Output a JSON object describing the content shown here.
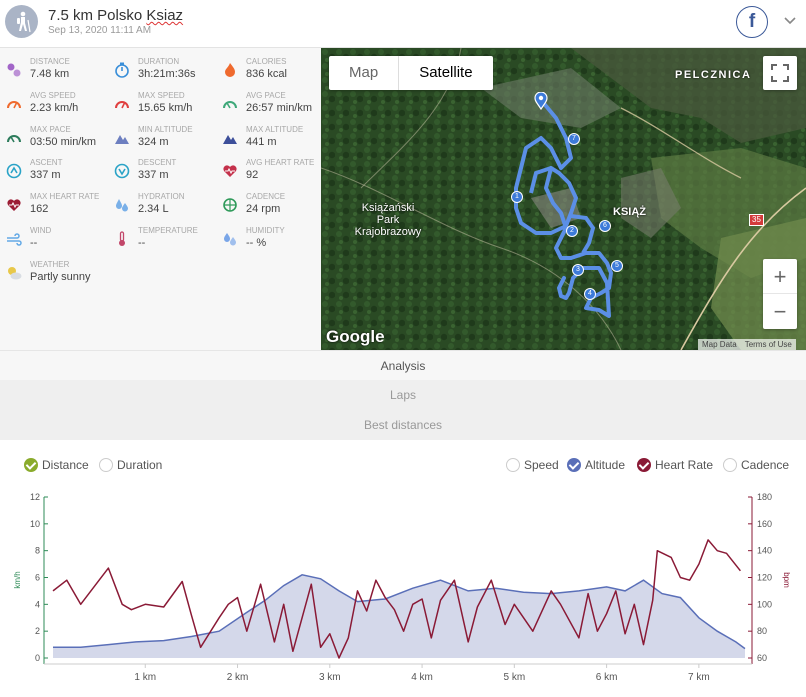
{
  "header": {
    "title_main": "7.5 km Polsko ",
    "title_misspelled": "Ksiaz",
    "subtitle": "Sep 13, 2020 11:11 AM"
  },
  "share": {
    "facebook_label": "f"
  },
  "stats": [
    {
      "label": "DISTANCE",
      "value": "7.48 km",
      "icon": "distance-icon",
      "color": "#a265c8"
    },
    {
      "label": "DURATION",
      "value": "3h:21m:36s",
      "icon": "stopwatch-icon",
      "color": "#3a8fd9"
    },
    {
      "label": "CALORIES",
      "value": "836 kcal",
      "icon": "flame-icon",
      "color": "#ef6a2e"
    },
    {
      "label": "AVG SPEED",
      "value": "2.23 km/h",
      "icon": "speedometer-icon",
      "color": "#ef6a2e"
    },
    {
      "label": "MAX SPEED",
      "value": "15.65 km/h",
      "icon": "speedometer-icon",
      "color": "#e04040"
    },
    {
      "label": "AVG PACE",
      "value": "26:57 min/km",
      "icon": "pace-gauge-icon",
      "color": "#3fa87a"
    },
    {
      "label": "MAX PACE",
      "value": "03:50 min/km",
      "icon": "pace-gauge-icon",
      "color": "#2d7c5c"
    },
    {
      "label": "MIN ALTITUDE",
      "value": "324 m",
      "icon": "mountain-icon",
      "color": "#6d7fc0"
    },
    {
      "label": "MAX ALTITUDE",
      "value": "441 m",
      "icon": "mountain-icon",
      "color": "#3d4f9a"
    },
    {
      "label": "ASCENT",
      "value": "337 m",
      "icon": "ascent-icon",
      "color": "#2aa3c7"
    },
    {
      "label": "DESCENT",
      "value": "337 m",
      "icon": "descent-icon",
      "color": "#2aa3c7"
    },
    {
      "label": "AVG HEART RATE",
      "value": "92",
      "icon": "heart-rate-icon",
      "color": "#c4314b"
    },
    {
      "label": "MAX HEART RATE",
      "value": "162",
      "icon": "heart-rate-icon",
      "color": "#9c1d35"
    },
    {
      "label": "HYDRATION",
      "value": "2.34 L",
      "icon": "water-drops-icon",
      "color": "#7ab0e8"
    },
    {
      "label": "CADENCE",
      "value": "24 rpm",
      "icon": "cadence-icon",
      "color": "#2f9a5a"
    },
    {
      "label": "WIND",
      "value": "--",
      "icon": "wind-icon",
      "color": "#63a9e6"
    },
    {
      "label": "TEMPERATURE",
      "value": "--",
      "icon": "thermometer-icon",
      "color": "#c2476a"
    },
    {
      "label": "HUMIDITY",
      "value": "-- %",
      "icon": "humidity-icon",
      "color": "#7aa6e8"
    },
    {
      "label": "WEATHER",
      "value": "Partly sunny",
      "icon": "partly-sunny-icon",
      "color": "#e8c84a"
    }
  ],
  "map": {
    "type_map": "Map",
    "type_satellite": "Satellite",
    "place_pelcznica": "PELCZNICA",
    "place_ksiaz": "KSIĄŻ",
    "park_label_1": "Książański",
    "park_label_2": "Park",
    "park_label_3": "Krajobrazowy",
    "road_number": "35",
    "logo": "Google",
    "map_data": "Map Data",
    "terms": "Terms of Use",
    "zoom_in": "+",
    "zoom_out": "−",
    "markers": [
      "1",
      "2",
      "3",
      "4",
      "5",
      "6",
      "7"
    ]
  },
  "tabs": {
    "analysis": "Analysis",
    "laps": "Laps",
    "best_distances": "Best distances"
  },
  "toggles": {
    "distance": "Distance",
    "duration": "Duration",
    "speed": "Speed",
    "altitude": "Altitude",
    "heart_rate": "Heart Rate",
    "cadence": "Cadence"
  },
  "colors": {
    "green": "#8aab2c",
    "altitude": "#5a6fb8",
    "heart": "#8a1a36",
    "speed_axis": "#2e8b57",
    "hr_axis": "#8a1a36"
  },
  "chart_data": {
    "type": "line",
    "x_unit": "km",
    "x_ticks": [
      "1 km",
      "2 km",
      "3 km",
      "4 km",
      "5 km",
      "6 km",
      "7 km"
    ],
    "left_axis": {
      "label": "km/h",
      "ticks": [
        "0",
        "2",
        "4",
        "6",
        "8",
        "10",
        "12"
      ],
      "range": [
        0,
        12
      ]
    },
    "right_axis": {
      "label": "bpm",
      "ticks": [
        "60",
        "80",
        "100",
        "120",
        "140",
        "160",
        "180"
      ],
      "range": [
        60,
        180
      ]
    },
    "series": [
      {
        "name": "Altitude",
        "type": "area",
        "x": [
          0.0,
          0.3,
          0.6,
          0.9,
          1.2,
          1.5,
          1.8,
          2.1,
          2.3,
          2.5,
          2.7,
          2.9,
          3.1,
          3.3,
          3.6,
          3.9,
          4.2,
          4.5,
          4.8,
          5.1,
          5.4,
          5.7,
          6.0,
          6.2,
          6.4,
          6.6,
          6.8,
          7.0,
          7.2,
          7.4,
          7.5
        ],
        "values": [
          0.8,
          0.8,
          1.0,
          1.2,
          1.3,
          1.6,
          2.0,
          3.4,
          4.3,
          5.4,
          6.2,
          5.9,
          5.0,
          4.2,
          4.4,
          5.2,
          5.8,
          5.0,
          5.2,
          4.9,
          4.8,
          5.0,
          5.3,
          5.0,
          5.8,
          4.8,
          4.5,
          3.0,
          2.0,
          1.2,
          0.7
        ]
      },
      {
        "name": "Heart Rate",
        "type": "line",
        "x": [
          0.0,
          0.15,
          0.3,
          0.5,
          0.6,
          0.75,
          0.85,
          1.0,
          1.2,
          1.4,
          1.5,
          1.6,
          1.8,
          1.9,
          2.0,
          2.1,
          2.25,
          2.4,
          2.5,
          2.6,
          2.8,
          2.9,
          3.0,
          3.1,
          3.2,
          3.3,
          3.4,
          3.5,
          3.6,
          3.7,
          3.8,
          3.9,
          4.0,
          4.1,
          4.2,
          4.35,
          4.5,
          4.6,
          4.75,
          4.9,
          5.0,
          5.2,
          5.4,
          5.5,
          5.7,
          5.8,
          5.9,
          6.0,
          6.1,
          6.2,
          6.3,
          6.4,
          6.5,
          6.55,
          6.7,
          6.8,
          6.9,
          7.0,
          7.1,
          7.2,
          7.3,
          7.45
        ],
        "values": [
          110,
          118,
          100,
          118,
          127,
          100,
          96,
          100,
          98,
          117,
          92,
          68,
          90,
          100,
          105,
          80,
          115,
          72,
          100,
          65,
          115,
          68,
          78,
          60,
          75,
          110,
          95,
          118,
          105,
          96,
          80,
          100,
          104,
          75,
          103,
          118,
          72,
          98,
          118,
          85,
          100,
          80,
          110,
          100,
          75,
          108,
          80,
          93,
          110,
          78,
          100,
          70,
          103,
          140,
          135,
          120,
          118,
          130,
          148,
          140,
          138,
          125
        ]
      }
    ]
  }
}
